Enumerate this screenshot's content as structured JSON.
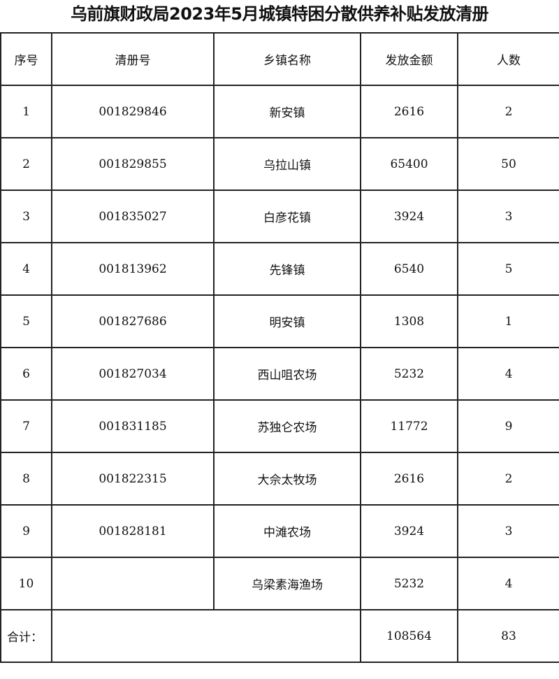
{
  "title": "乌前旗财政局2023年5月城镇特困分散供养补贴发放清册",
  "headers": [
    "序号",
    "清册号",
    "乡镇名称",
    "发放金额",
    "人数"
  ],
  "rows": [
    {
      "no": "1",
      "register": "001829846",
      "town": "新安镇",
      "amount": "2616",
      "people": "2"
    },
    {
      "no": "2",
      "register": "001829855",
      "town": "乌拉山镇",
      "amount": "65400",
      "people": "50"
    },
    {
      "no": "3",
      "register": "001835027",
      "town": "白彦花镇",
      "amount": "3924",
      "people": "3"
    },
    {
      "no": "4",
      "register": "001813962",
      "town": "先锋镇",
      "amount": "6540",
      "people": "5"
    },
    {
      "no": "5",
      "register": "001827686",
      "town": "明安镇",
      "amount": "1308",
      "people": "1"
    },
    {
      "no": "6",
      "register": "001827034",
      "town": "西山咀农场",
      "amount": "5232",
      "people": "4"
    },
    {
      "no": "7",
      "register": "001831185",
      "town": "苏独仑农场",
      "amount": "11772",
      "people": "9"
    },
    {
      "no": "8",
      "register": "001822315",
      "town": "大佘太牧场",
      "amount": "2616",
      "people": "2"
    },
    {
      "no": "9",
      "register": "001828181",
      "town": "中滩农场",
      "amount": "3924",
      "people": "3"
    },
    {
      "no": "10",
      "register": "",
      "town": "乌梁素海渔场",
      "amount": "5232",
      "people": "4"
    }
  ],
  "total": {
    "label": "合计：",
    "amount": "108564",
    "people": "83"
  }
}
